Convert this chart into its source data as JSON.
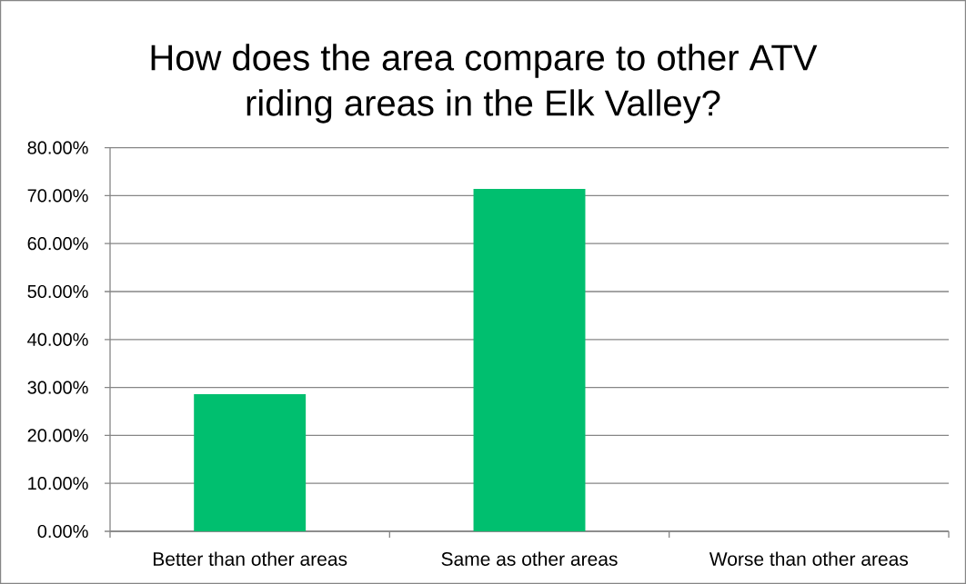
{
  "chart_data": {
    "type": "bar",
    "title": "How does the area compare to other ATV riding areas in the Elk Valley?",
    "categories": [
      "Better than other areas",
      "Same as other areas",
      "Worse than other areas"
    ],
    "values": [
      28.6,
      71.4,
      0
    ],
    "color": "#00bf6f",
    "ylim": [
      0,
      80
    ],
    "yticks": [
      {
        "value": 0,
        "label": "0.00%"
      },
      {
        "value": 10,
        "label": "10.00%"
      },
      {
        "value": 20,
        "label": "20.00%"
      },
      {
        "value": 30,
        "label": "30.00%"
      },
      {
        "value": 40,
        "label": "40.00%"
      },
      {
        "value": 50,
        "label": "50.00%"
      },
      {
        "value": 60,
        "label": "60.00%"
      },
      {
        "value": 70,
        "label": "70.00%"
      },
      {
        "value": 80,
        "label": "80.00%"
      }
    ],
    "grid": "y"
  }
}
